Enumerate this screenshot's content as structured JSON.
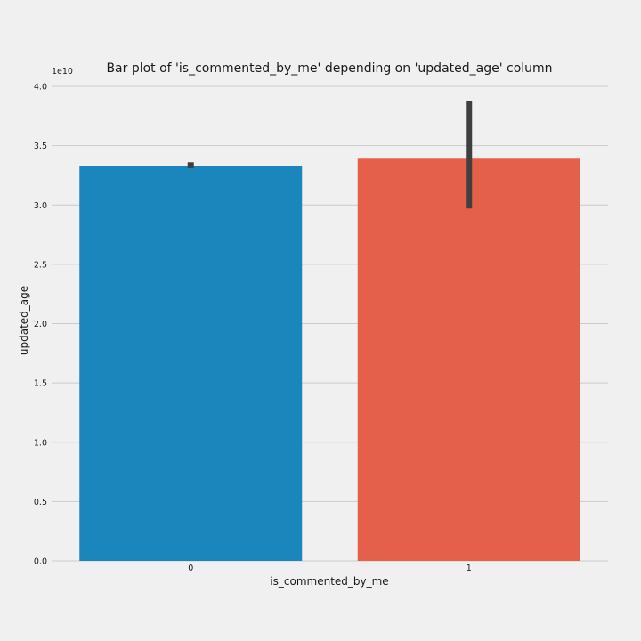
{
  "chart_data": {
    "type": "bar",
    "title": "Bar plot of 'is_commented_by_me' depending on 'updated_age' column",
    "xlabel": "is_commented_by_me",
    "ylabel": "updated_age",
    "y_offset_label": "1e10",
    "categories": [
      "0",
      "1"
    ],
    "values": [
      3.33,
      3.39
    ],
    "error_bars": [
      [
        3.31,
        3.36
      ],
      [
        2.97,
        3.88
      ]
    ],
    "colors": [
      "#1a86bb",
      "#e5604a"
    ],
    "error_bar_color": "#3f3f3f",
    "ylim": [
      0,
      4.0
    ],
    "yticks": [
      "0.0",
      "0.5",
      "1.0",
      "1.5",
      "2.0",
      "2.5",
      "3.0",
      "3.5",
      "4.0"
    ],
    "grid": true
  }
}
